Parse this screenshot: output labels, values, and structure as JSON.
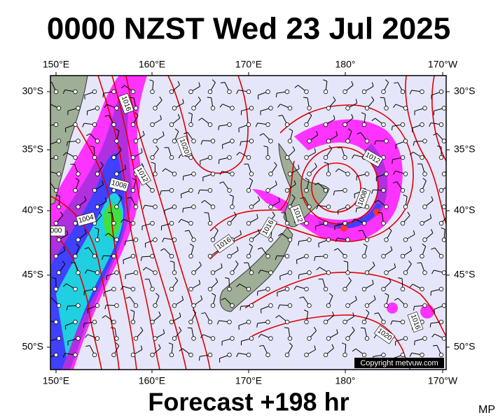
{
  "title": "0000 NZST Wed 23 Jul 2025",
  "map": {
    "lon_labels": [
      "150°E",
      "160°E",
      "170°E",
      "180°",
      "170°W"
    ],
    "lat_labels": [
      "30°S",
      "35°S",
      "40°S",
      "45°S",
      "50°S"
    ],
    "isobar_labels": [
      "1016",
      "1020",
      "1012",
      "1008",
      "1004",
      "000",
      "1016",
      "1016",
      "1012",
      "1008",
      "1012",
      "1016",
      "1020"
    ],
    "copyright": "Copyright metvuw.com"
  },
  "footer": "Forecast +198 hr",
  "initials": "MP"
}
